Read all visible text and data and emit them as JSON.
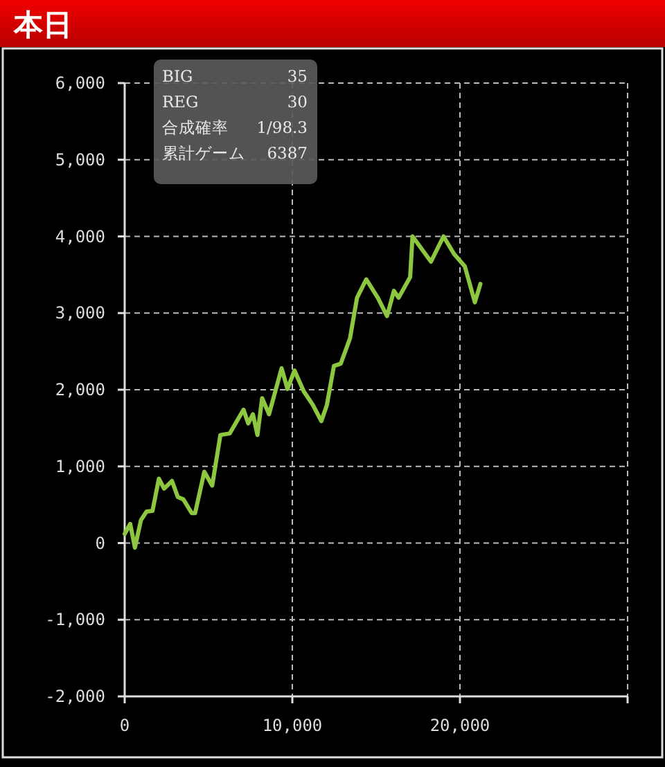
{
  "chart_data": {
    "type": "line",
    "title": "本日",
    "annotations": [
      "BIG",
      "35",
      "REG",
      "30",
      "合成確率",
      "1/98.3",
      "累計ゲーム",
      "6387"
    ],
    "x": [
      0,
      330,
      610,
      970,
      1300,
      1660,
      2040,
      2350,
      2820,
      3170,
      3500,
      4000,
      4200,
      4750,
      5220,
      5710,
      6270,
      7090,
      7370,
      7650,
      7920,
      8200,
      8610,
      9360,
      9710,
      10130,
      10680,
      11230,
      11730,
      12060,
      12480,
      12890,
      13440,
      13860,
      14410,
      15100,
      15650,
      16060,
      16340,
      17030,
      17170,
      18270,
      19020,
      19650,
      20290,
      20890,
      21220
    ],
    "series": [
      {
        "color": "#8dc63f",
        "values": [
          120,
          250,
          -60,
          300,
          410,
          420,
          840,
          710,
          810,
          600,
          570,
          390,
          390,
          930,
          750,
          1410,
          1430,
          1740,
          1560,
          1680,
          1410,
          1890,
          1680,
          2280,
          2010,
          2250,
          1980,
          1800,
          1590,
          1800,
          2310,
          2340,
          2670,
          3200,
          3440,
          3200,
          2960,
          3290,
          3200,
          3470,
          4000,
          3670,
          4000,
          3770,
          3610,
          3140,
          3380
        ]
      }
    ],
    "xlim": [
      0,
      30000
    ],
    "xticks": [
      0,
      {
        "value": 10000,
        "label": "10,000"
      },
      {
        "value": 20000,
        "label": "20,000"
      },
      {
        "value": 30000,
        "label": null
      }
    ],
    "ylim": [
      -2000,
      6000
    ],
    "yticks": [
      {
        "value": -2000,
        "label": "-2,000"
      },
      {
        "value": -1000,
        "label": "-1,000"
      },
      0,
      {
        "value": 1000,
        "label": "1,000"
      },
      {
        "value": 2000,
        "label": "2,000"
      },
      {
        "value": 3000,
        "label": "3,000"
      },
      {
        "value": 4000,
        "label": "4,000"
      },
      {
        "value": 5000,
        "label": "5,000"
      },
      {
        "value": 6000,
        "label": "6,000"
      }
    ],
    "grid": true,
    "marker": "none",
    "line_style": "solid"
  }
}
